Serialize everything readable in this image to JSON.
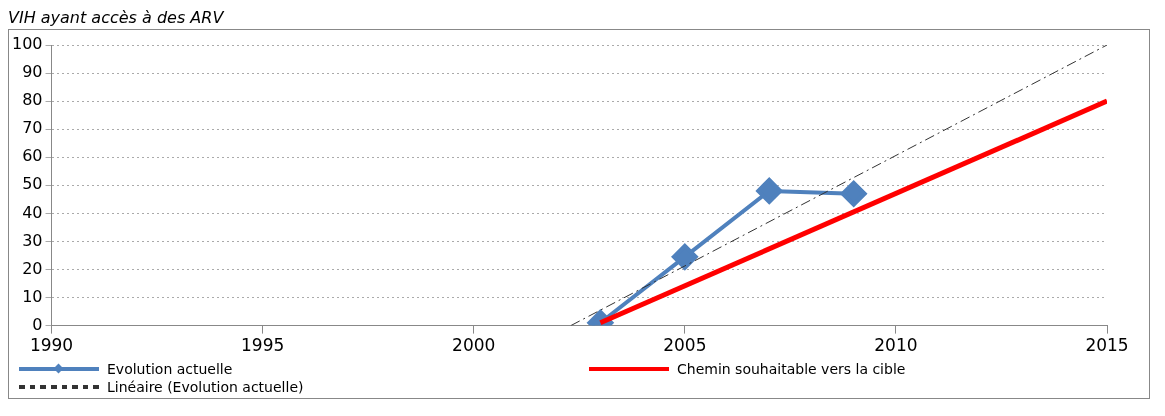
{
  "chart_data": {
    "type": "line",
    "title": "VIH ayant accès à des ARV",
    "xlim": [
      1990,
      2015
    ],
    "xticks": [
      1990,
      1995,
      2000,
      2005,
      2010,
      2015
    ],
    "ylim": [
      0,
      100
    ],
    "yticks": [
      0,
      10,
      20,
      30,
      40,
      50,
      60,
      70,
      80,
      90,
      100
    ],
    "grid": "y",
    "legend": "bottom",
    "series": [
      {
        "name": "Evolution actuelle",
        "color": "#4f81bd",
        "x": [
          2003,
          2005,
          2007,
          2009
        ],
        "values": [
          1,
          24.5,
          48,
          47
        ],
        "marker": "diamond",
        "line_style": "solid"
      },
      {
        "name": "Chemin souhaitable vers la cible",
        "color": "#ff0000",
        "x": [
          2003,
          2015
        ],
        "values": [
          1,
          80
        ],
        "marker": "none",
        "line_style": "solid"
      },
      {
        "name": "Linéaire (Evolution actuelle)",
        "color": "#333333",
        "x": [
          2002.3,
          2015
        ],
        "values": [
          0,
          100
        ],
        "marker": "none",
        "line_style": "dashed"
      }
    ]
  }
}
